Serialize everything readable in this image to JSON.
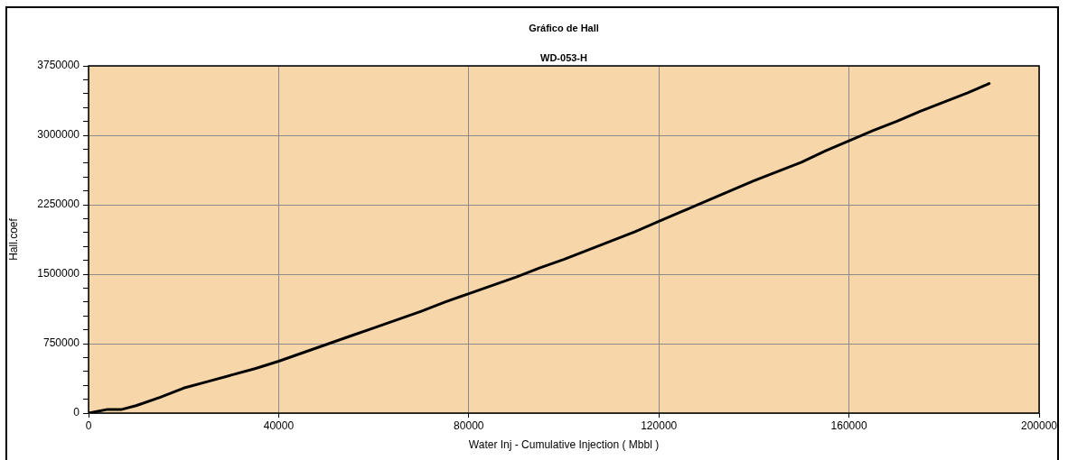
{
  "chart_data": {
    "type": "line",
    "title": "Gráfico de Hall",
    "subtitle": "WD-053-H",
    "xlabel": "Water Inj - Cumulative Injection ( Mbbl )",
    "ylabel": "Hall.coef",
    "x": [
      0,
      2000,
      4000,
      7000,
      10000,
      15000,
      20000,
      25000,
      30000,
      35000,
      40000,
      45000,
      50000,
      55000,
      60000,
      65000,
      70000,
      75000,
      80000,
      85000,
      90000,
      95000,
      100000,
      105000,
      110000,
      115000,
      120000,
      125000,
      130000,
      135000,
      140000,
      145000,
      150000,
      155000,
      160000,
      165000,
      170000,
      175000,
      180000,
      185000,
      189500
    ],
    "series": [
      {
        "color": "#000000",
        "values": [
          0,
          20000,
          40000,
          40000,
          80000,
          170000,
          270000,
          340000,
          410000,
          480000,
          560000,
          650000,
          740000,
          830000,
          920000,
          1010000,
          1100000,
          1200000,
          1290000,
          1380000,
          1470000,
          1570000,
          1660000,
          1760000,
          1860000,
          1960000,
          2070000,
          2180000,
          2290000,
          2400000,
          2510000,
          2610000,
          2710000,
          2830000,
          2940000,
          3050000,
          3150000,
          3260000,
          3360000,
          3460000,
          3560000
        ]
      }
    ],
    "xlim": [
      0,
      200000
    ],
    "xticks": [
      0,
      40000,
      80000,
      120000,
      160000,
      200000
    ],
    "ylim": [
      0,
      3750000
    ],
    "yticks": [
      0,
      {
        "value": 150000,
        "label": null
      },
      {
        "value": 300000,
        "label": null
      },
      {
        "value": 450000,
        "label": null
      },
      {
        "value": 600000,
        "label": null
      },
      750000,
      {
        "value": 900000,
        "label": null
      },
      {
        "value": 1050000,
        "label": null
      },
      {
        "value": 1200000,
        "label": null
      },
      {
        "value": 1350000,
        "label": null
      },
      1500000,
      {
        "value": 1650000,
        "label": null
      },
      {
        "value": 1800000,
        "label": null
      },
      {
        "value": 1950000,
        "label": null
      },
      {
        "value": 2100000,
        "label": null
      },
      2250000,
      {
        "value": 2400000,
        "label": null
      },
      {
        "value": 2550000,
        "label": null
      },
      {
        "value": 2700000,
        "label": null
      },
      {
        "value": 2850000,
        "label": null
      },
      3000000,
      {
        "value": 3150000,
        "label": null
      },
      {
        "value": 3300000,
        "label": null
      },
      {
        "value": 3450000,
        "label": null
      },
      {
        "value": 3600000,
        "label": null
      },
      3750000
    ],
    "grid": true,
    "legend": false,
    "marker": "none",
    "line_style": "solid"
  }
}
